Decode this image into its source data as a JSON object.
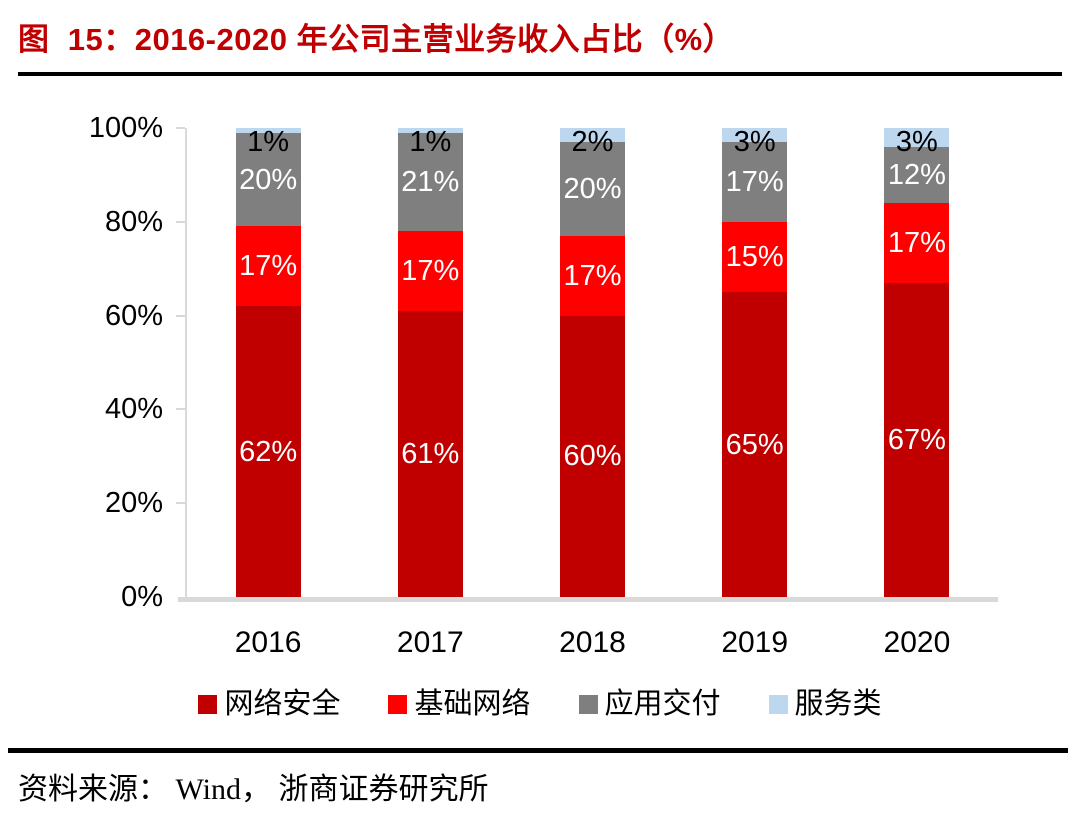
{
  "page": {
    "title": "图  15：2016-2020 年公司主营业务收入占比（%）",
    "source": "资料来源： Wind， 浙商证券研究所"
  },
  "chart_data": {
    "type": "bar",
    "stacked": true,
    "title": "2016-2020 年公司主营业务收入占比（%）",
    "categories": [
      "2016",
      "2017",
      "2018",
      "2019",
      "2020"
    ],
    "series": [
      {
        "name": "网络安全",
        "color": "#c00000",
        "label_color": "#ffffff",
        "values": [
          62,
          61,
          60,
          65,
          67
        ]
      },
      {
        "name": "基础网络",
        "color": "#ff0000",
        "label_color": "#ffffff",
        "values": [
          17,
          17,
          17,
          15,
          17
        ]
      },
      {
        "name": "应用交付",
        "color": "#7f7f7f",
        "label_color": "#ffffff",
        "values": [
          20,
          21,
          20,
          17,
          12
        ]
      },
      {
        "name": "服务类",
        "color": "#bdd7ee",
        "label_color": "#000000",
        "values": [
          1,
          1,
          2,
          3,
          3
        ]
      }
    ],
    "unit": "%",
    "ylabel": "",
    "xlabel": "",
    "ylim": [
      0,
      100
    ],
    "ytick_values": [
      0,
      20,
      40,
      60,
      80,
      100
    ],
    "yticks": [
      "0%",
      "20%",
      "40%",
      "60%",
      "80%",
      "100%"
    ],
    "legend_position": "bottom",
    "grid": false,
    "axis_color": "#d9d9d9",
    "data_labels": true
  }
}
